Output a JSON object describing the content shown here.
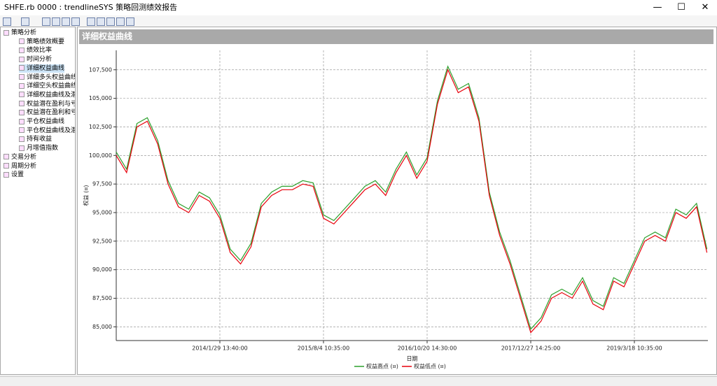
{
  "window": {
    "title": "SHFE.rb 0000 : trendlineSYS 策略回测绩效报告"
  },
  "tree": [
    {
      "label": "策略分析",
      "children": [
        "策略绩效概要",
        "绩效比率",
        "时间分析",
        "详细权益曲线",
        "详细多头权益曲线",
        "详细空头权益曲线",
        "详细权益曲线及潜在",
        "权益潜在盈利与亏损",
        "权益潜在盈利和亏损",
        "平仓权益曲线",
        "平仓权益曲线及潜在",
        "持有收益",
        "月增值指数"
      ]
    },
    {
      "label": "交易分析"
    },
    {
      "label": "周期分析"
    },
    {
      "label": "设置"
    }
  ],
  "selected": "详细权益曲线",
  "chart_data": {
    "type": "line",
    "title": "详细权益曲线",
    "x_label": "日期",
    "y_label": "权益 (¤)",
    "categories": [
      null,
      null,
      null,
      null,
      null,
      null,
      null,
      null,
      null,
      null,
      "2014/1/29 13:40:00",
      null,
      null,
      null,
      null,
      null,
      null,
      null,
      null,
      null,
      "2015/8/4 10:35:00",
      null,
      null,
      null,
      null,
      null,
      null,
      null,
      null,
      null,
      "2016/10/20 14:30:00",
      null,
      null,
      null,
      null,
      null,
      null,
      null,
      null,
      null,
      "2017/12/27 14:25:00",
      null,
      null,
      null,
      null,
      null,
      null,
      null,
      null,
      null,
      "2019/3/18 10:35:00",
      null,
      null,
      null,
      null,
      null,
      null,
      null
    ],
    "series": [
      {
        "name": "权益高点 (¤)",
        "color": "#2ca02c",
        "values": [
          100300,
          98800,
          102800,
          103300,
          101300,
          97800,
          95800,
          95300,
          96800,
          96300,
          94800,
          91800,
          90800,
          92300,
          95800,
          96800,
          97300,
          97300,
          97800,
          97600,
          94800,
          94300,
          95300,
          96300,
          97300,
          97800,
          96800,
          98800,
          100300,
          98300,
          99800,
          104800,
          107800,
          105800,
          106300,
          103300,
          96800,
          93300,
          90800,
          87800,
          84800,
          85800,
          87800,
          88300,
          87800,
          89300,
          87300,
          86800,
          89300,
          88800,
          90800,
          92800,
          93300,
          92800,
          95300,
          94800,
          95800,
          91800
        ]
      },
      {
        "name": "权益低点 (¤)",
        "color": "#e8000b",
        "values": [
          100000,
          98500,
          102500,
          103000,
          101000,
          97500,
          95500,
          95000,
          96500,
          96000,
          94500,
          91500,
          90500,
          92000,
          95500,
          96500,
          97000,
          97000,
          97500,
          97300,
          94500,
          94000,
          95000,
          96000,
          97000,
          97500,
          96500,
          98500,
          100000,
          98000,
          99500,
          104500,
          107500,
          105500,
          106000,
          103000,
          96500,
          93000,
          90500,
          87500,
          84500,
          85500,
          87500,
          88000,
          87500,
          89000,
          87000,
          86500,
          89000,
          88500,
          90500,
          92500,
          93000,
          92500,
          95000,
          94500,
          95500,
          91500
        ]
      }
    ],
    "ylim": [
      83800,
      109200
    ],
    "yticks": [
      {
        "value": 85000,
        "label": "85,000"
      },
      {
        "value": 87500,
        "label": "87,500"
      },
      {
        "value": 90000,
        "label": "90,000"
      },
      {
        "value": 92500,
        "label": "92,500"
      },
      {
        "value": 95000,
        "label": "95,000"
      },
      {
        "value": 97500,
        "label": "97,500"
      },
      {
        "value": 100000,
        "label": "100,000"
      },
      {
        "value": 102500,
        "label": "102,500"
      },
      {
        "value": 105000,
        "label": "105,000"
      },
      {
        "value": 107500,
        "label": "107,500"
      }
    ],
    "grid": true,
    "legend": "bottom"
  }
}
